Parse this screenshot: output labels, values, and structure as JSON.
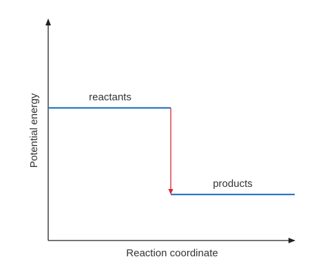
{
  "axes": {
    "x_label": "Reaction coordinate",
    "y_label": "Potential energy"
  },
  "levels": [
    {
      "label": "reactants"
    },
    {
      "label": "products"
    }
  ]
}
